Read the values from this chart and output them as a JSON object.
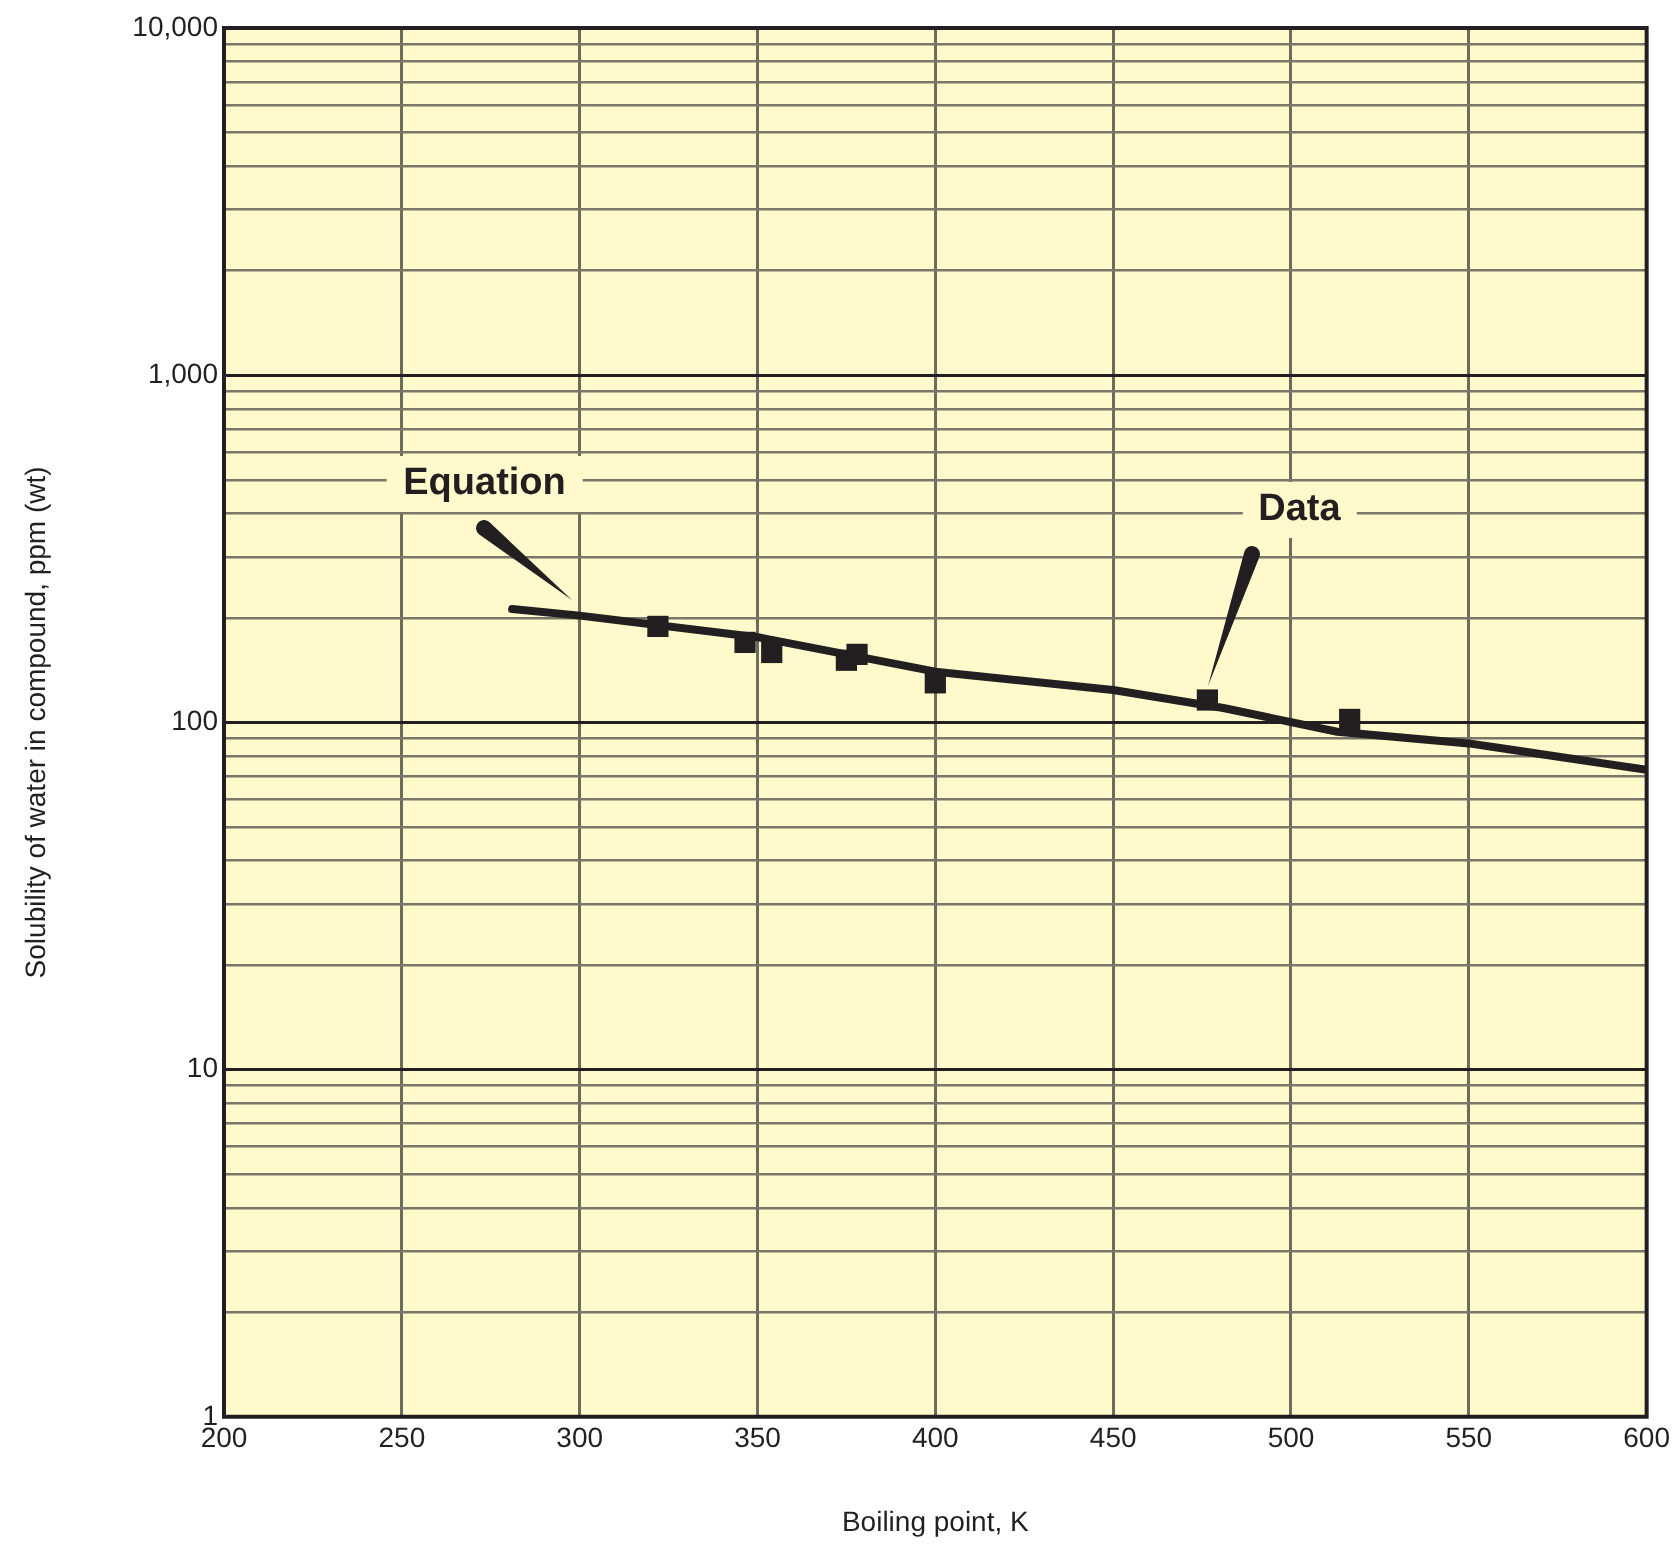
{
  "chart_data": {
    "type": "line",
    "xlabel": "Boiling point, K",
    "ylabel": "Solubility of water in compound, ppm (wt)",
    "series": [
      {
        "type": "line",
        "color": "#231f20",
        "marker": "none",
        "x": [
          281,
          300,
          350,
          400,
          450,
          481,
          513,
          550,
          600
        ],
        "values": [
          212,
          203,
          176,
          140,
          124,
          110,
          94,
          87,
          73
        ]
      },
      {
        "type": "scatter",
        "color": "#231f20",
        "marker": "square",
        "x": [
          322,
          346.5,
          354,
          375,
          378,
          400,
          476.5,
          516.5
        ],
        "values": [
          189,
          170,
          159,
          151,
          157,
          130,
          116,
          102
        ]
      }
    ],
    "annotations": [
      {
        "text": "Equation",
        "x": 298,
        "y": 204
      },
      {
        "text": "Data",
        "x": 476.5,
        "y": 116
      }
    ],
    "log": "y",
    "xlim": [
      200,
      600
    ],
    "xticks": [
      200,
      250,
      300,
      350,
      400,
      450,
      500,
      550,
      600
    ],
    "ylim": [
      1,
      10000
    ],
    "yticks": [
      1,
      {
        "value": 2,
        "label": null
      },
      {
        "value": 3,
        "label": null
      },
      {
        "value": 4,
        "label": null
      },
      {
        "value": 5,
        "label": null
      },
      {
        "value": 6,
        "label": null
      },
      {
        "value": 7,
        "label": null
      },
      {
        "value": 8,
        "label": null
      },
      {
        "value": 9,
        "label": null
      },
      10,
      {
        "value": 20,
        "label": null
      },
      {
        "value": 30,
        "label": null
      },
      {
        "value": 40,
        "label": null
      },
      {
        "value": 50,
        "label": null
      },
      {
        "value": 60,
        "label": null
      },
      {
        "value": 70,
        "label": null
      },
      {
        "value": 80,
        "label": null
      },
      {
        "value": 90,
        "label": null
      },
      100,
      {
        "value": 200,
        "label": null
      },
      {
        "value": 300,
        "label": null
      },
      {
        "value": 400,
        "label": null
      },
      {
        "value": 500,
        "label": null
      },
      {
        "value": 600,
        "label": null
      },
      {
        "value": 700,
        "label": null
      },
      {
        "value": 800,
        "label": null
      },
      {
        "value": 900,
        "label": null
      },
      {
        "value": 1000,
        "label": "1,000"
      },
      {
        "value": 2000,
        "label": null
      },
      {
        "value": 3000,
        "label": null
      },
      {
        "value": 4000,
        "label": null
      },
      {
        "value": 5000,
        "label": null
      },
      {
        "value": 6000,
        "label": null
      },
      {
        "value": 7000,
        "label": null
      },
      {
        "value": 8000,
        "label": null
      },
      {
        "value": 9000,
        "label": null
      },
      {
        "value": 10000,
        "label": "10,000"
      }
    ],
    "grid": true,
    "legend": false
  }
}
